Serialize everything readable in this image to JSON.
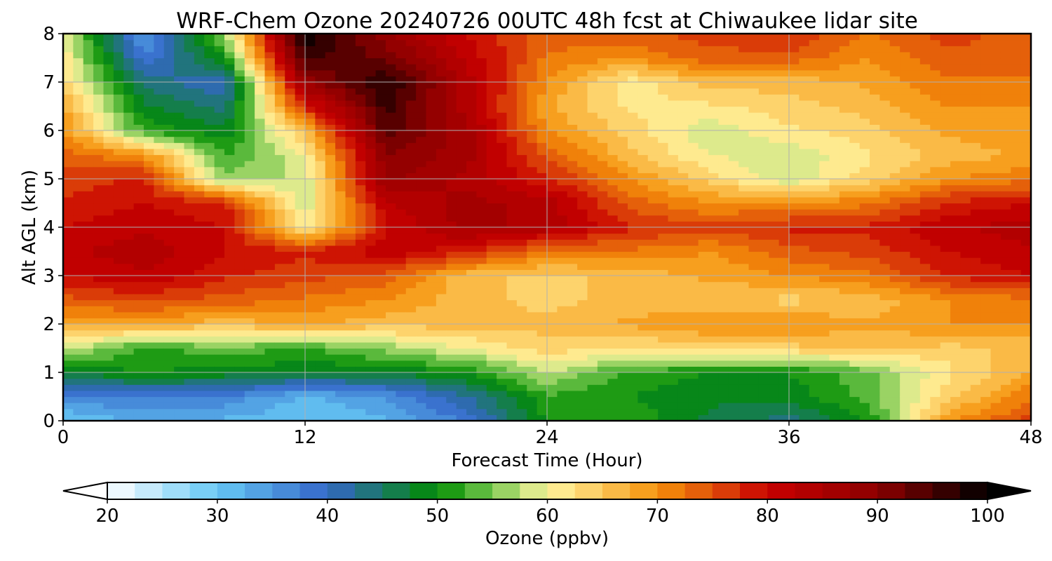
{
  "chart_data": {
    "type": "heatmap",
    "title": "WRF-Chem Ozone  20240726 00UTC 48h fcst at Chiwaukee lidar site",
    "xlabel": "Forecast Time (Hour)",
    "ylabel": "Alt AGL (km)",
    "xlim": [
      0,
      48
    ],
    "ylim": [
      0,
      8
    ],
    "x_ticks": [
      "0",
      "12",
      "24",
      "36",
      "48"
    ],
    "y_ticks": [
      "0",
      "1",
      "2",
      "3",
      "4",
      "5",
      "6",
      "7",
      "8"
    ],
    "grid": true,
    "x": [
      0,
      4,
      8,
      12,
      16,
      20,
      24,
      28,
      32,
      36,
      40,
      44,
      48
    ],
    "y": [
      0,
      0.5,
      1,
      1.5,
      2,
      2.5,
      3,
      3.5,
      4,
      4.5,
      5,
      5.5,
      6,
      6.5,
      7,
      7.5,
      8
    ],
    "z": [
      [
        30,
        33,
        32,
        30,
        32,
        38,
        50,
        52,
        47,
        44,
        50,
        70,
        76
      ],
      [
        36,
        38,
        37,
        32,
        35,
        42,
        52,
        50,
        48,
        48,
        54,
        64,
        72
      ],
      [
        48,
        50,
        49,
        48,
        48,
        50,
        58,
        52,
        50,
        50,
        54,
        62,
        68
      ],
      [
        58,
        52,
        54,
        52,
        56,
        60,
        64,
        62,
        64,
        64,
        66,
        64,
        66
      ],
      [
        68,
        68,
        66,
        68,
        66,
        66,
        66,
        68,
        70,
        70,
        68,
        70,
        70
      ],
      [
        74,
        76,
        74,
        72,
        70,
        66,
        64,
        66,
        66,
        64,
        66,
        70,
        72
      ],
      [
        80,
        82,
        78,
        76,
        74,
        66,
        64,
        66,
        68,
        70,
        72,
        78,
        80
      ],
      [
        82,
        84,
        80,
        78,
        82,
        78,
        72,
        72,
        70,
        74,
        76,
        80,
        82
      ],
      [
        80,
        82,
        80,
        60,
        80,
        86,
        84,
        78,
        76,
        78,
        78,
        82,
        84
      ],
      [
        78,
        80,
        78,
        58,
        82,
        86,
        84,
        74,
        70,
        70,
        72,
        78,
        80
      ],
      [
        76,
        78,
        56,
        58,
        88,
        84,
        78,
        70,
        64,
        58,
        64,
        70,
        72
      ],
      [
        74,
        70,
        52,
        60,
        90,
        86,
        74,
        66,
        60,
        58,
        62,
        66,
        68
      ],
      [
        70,
        52,
        48,
        66,
        94,
        86,
        70,
        64,
        58,
        62,
        64,
        68,
        70
      ],
      [
        68,
        48,
        44,
        78,
        96,
        84,
        68,
        62,
        62,
        64,
        66,
        70,
        70
      ],
      [
        64,
        44,
        40,
        88,
        98,
        84,
        70,
        61,
        66,
        66,
        68,
        72,
        72
      ],
      [
        62,
        38,
        50,
        96,
        92,
        82,
        72,
        70,
        74,
        74,
        70,
        74,
        74
      ],
      [
        60,
        34,
        56,
        100,
        88,
        80,
        74,
        74,
        76,
        78,
        72,
        76,
        74
      ]
    ],
    "colorbar": {
      "label": "Ozone  (ppbv)",
      "min": 20,
      "max": 100,
      "ticks": [
        "20",
        "30",
        "40",
        "50",
        "60",
        "70",
        "80",
        "90",
        "100"
      ],
      "extend": "both",
      "color_stops": [
        [
          20,
          "#ffffff"
        ],
        [
          30,
          "#66c8f5"
        ],
        [
          40,
          "#3466c8"
        ],
        [
          50,
          "#008c00"
        ],
        [
          55,
          "#78c850"
        ],
        [
          60,
          "#fff5a0"
        ],
        [
          65,
          "#fcc85a"
        ],
        [
          70,
          "#f5910a"
        ],
        [
          75,
          "#e0500a"
        ],
        [
          80,
          "#c80000"
        ],
        [
          90,
          "#8c0000"
        ],
        [
          100,
          "#000000"
        ]
      ],
      "under_color": "#ffffff",
      "over_color": "#000000"
    }
  }
}
